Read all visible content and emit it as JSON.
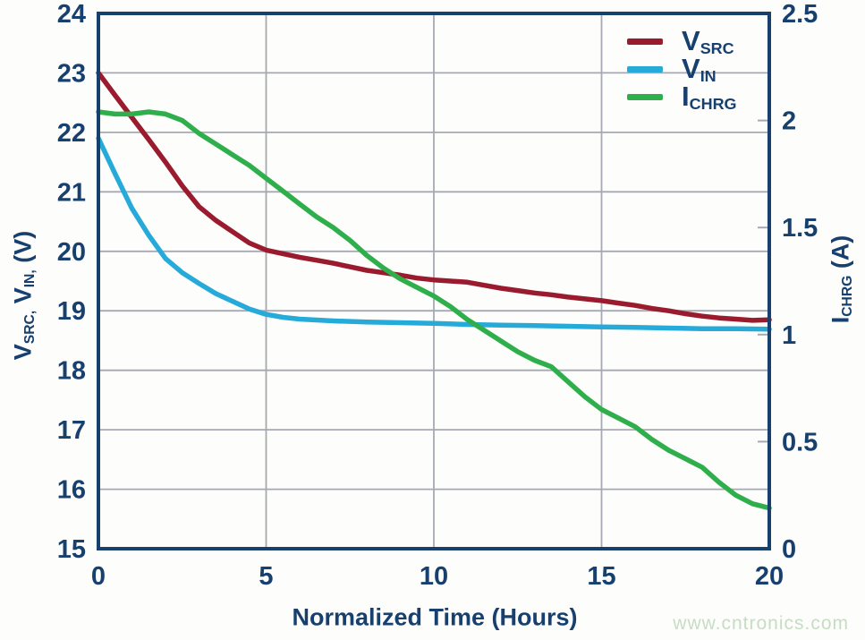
{
  "watermark": "www.cntronics.com",
  "colors": {
    "navy_axis": "#17406F",
    "grid": "#A6A9B4",
    "background": "#FDFDFB",
    "series_vsrc": "#9A1B2E",
    "series_vin": "#25AAD9",
    "series_ichrg": "#2FAF4B",
    "watermark_green": "#C7DCC4"
  },
  "axes": {
    "left_title": {
      "p1": "V",
      "s1": "SRC,",
      "p2": " V",
      "s2": "IN,",
      "p3": " (V)"
    },
    "right_title": {
      "p1": "I",
      "s1": "CHRG",
      "p2": " (A)"
    }
  },
  "chart_data": {
    "type": "line",
    "title": "",
    "xlabel": "Normalized Time (Hours)",
    "ylabel_left": "VSRC, VIN, (V)",
    "ylabel_right": "ICHRG (A)",
    "x_range": [
      0,
      20
    ],
    "x_ticks": [
      0,
      5,
      10,
      15,
      20
    ],
    "y_left_range": [
      15,
      24
    ],
    "y_left_ticks": [
      15,
      16,
      17,
      18,
      19,
      20,
      21,
      22,
      23,
      24
    ],
    "y_right_range": [
      0,
      2.5
    ],
    "y_right_ticks": [
      0,
      0.5,
      1,
      1.5,
      2,
      2.5
    ],
    "grid": {
      "vertical_at_x": [
        5,
        10,
        15
      ],
      "horizontal_at_left_y": [
        16,
        17,
        18,
        19,
        20,
        21,
        22,
        23
      ]
    },
    "legend_position": "top-right-inside",
    "series": [
      {
        "name": "VSRC",
        "label_main": "V",
        "label_sub": "SRC",
        "axis": "left",
        "color": "#9A1B2E",
        "points": [
          [
            0,
            23.0
          ],
          [
            0.5,
            22.62
          ],
          [
            1,
            22.25
          ],
          [
            1.5,
            21.88
          ],
          [
            2,
            21.5
          ],
          [
            2.5,
            21.1
          ],
          [
            3,
            20.75
          ],
          [
            3.5,
            20.52
          ],
          [
            4,
            20.33
          ],
          [
            4.5,
            20.14
          ],
          [
            5,
            20.02
          ],
          [
            5.5,
            19.96
          ],
          [
            6,
            19.9
          ],
          [
            6.5,
            19.85
          ],
          [
            7,
            19.8
          ],
          [
            7.5,
            19.74
          ],
          [
            8,
            19.68
          ],
          [
            8.5,
            19.64
          ],
          [
            9,
            19.6
          ],
          [
            9.5,
            19.55
          ],
          [
            10,
            19.52
          ],
          [
            10.5,
            19.5
          ],
          [
            11,
            19.48
          ],
          [
            11.5,
            19.43
          ],
          [
            12,
            19.38
          ],
          [
            12.5,
            19.34
          ],
          [
            13,
            19.3
          ],
          [
            13.5,
            19.27
          ],
          [
            14,
            19.23
          ],
          [
            14.5,
            19.2
          ],
          [
            15,
            19.17
          ],
          [
            15.5,
            19.13
          ],
          [
            16,
            19.09
          ],
          [
            16.5,
            19.04
          ],
          [
            17,
            19.0
          ],
          [
            17.5,
            18.95
          ],
          [
            18,
            18.91
          ],
          [
            18.5,
            18.88
          ],
          [
            19,
            18.86
          ],
          [
            19.5,
            18.84
          ],
          [
            20,
            18.85
          ]
        ]
      },
      {
        "name": "VIN",
        "label_main": "V",
        "label_sub": "IN",
        "axis": "left",
        "color": "#25AAD9",
        "points": [
          [
            0,
            21.9
          ],
          [
            0.5,
            21.3
          ],
          [
            1,
            20.72
          ],
          [
            1.5,
            20.27
          ],
          [
            2,
            19.88
          ],
          [
            2.5,
            19.64
          ],
          [
            3,
            19.46
          ],
          [
            3.5,
            19.29
          ],
          [
            4,
            19.16
          ],
          [
            4.5,
            19.03
          ],
          [
            5,
            18.94
          ],
          [
            5.5,
            18.89
          ],
          [
            6,
            18.86
          ],
          [
            7,
            18.83
          ],
          [
            8,
            18.81
          ],
          [
            9,
            18.8
          ],
          [
            10,
            18.79
          ],
          [
            11,
            18.77
          ],
          [
            12,
            18.76
          ],
          [
            13,
            18.75
          ],
          [
            14,
            18.74
          ],
          [
            15,
            18.73
          ],
          [
            16,
            18.72
          ],
          [
            17,
            18.71
          ],
          [
            18,
            18.7
          ],
          [
            19,
            18.7
          ],
          [
            20,
            18.69
          ]
        ]
      },
      {
        "name": "ICHRG",
        "label_main": "I",
        "label_sub": "CHRG",
        "axis": "right",
        "color": "#2FAF4B",
        "points": [
          [
            0,
            2.04
          ],
          [
            0.5,
            2.03
          ],
          [
            1,
            2.03
          ],
          [
            1.5,
            2.04
          ],
          [
            2,
            2.03
          ],
          [
            2.5,
            2.0
          ],
          [
            3,
            1.94
          ],
          [
            3.5,
            1.89
          ],
          [
            4,
            1.84
          ],
          [
            4.5,
            1.79
          ],
          [
            5,
            1.73
          ],
          [
            5.5,
            1.67
          ],
          [
            6,
            1.61
          ],
          [
            6.5,
            1.55
          ],
          [
            7,
            1.5
          ],
          [
            7.5,
            1.44
          ],
          [
            8,
            1.37
          ],
          [
            8.5,
            1.31
          ],
          [
            9,
            1.26
          ],
          [
            9.5,
            1.22
          ],
          [
            10,
            1.18
          ],
          [
            10.5,
            1.13
          ],
          [
            11,
            1.07
          ],
          [
            11.5,
            1.02
          ],
          [
            12,
            0.97
          ],
          [
            12.5,
            0.92
          ],
          [
            13,
            0.88
          ],
          [
            13.5,
            0.85
          ],
          [
            14,
            0.78
          ],
          [
            14.5,
            0.71
          ],
          [
            15,
            0.65
          ],
          [
            15.5,
            0.61
          ],
          [
            16,
            0.57
          ],
          [
            16.5,
            0.51
          ],
          [
            17,
            0.46
          ],
          [
            17.5,
            0.42
          ],
          [
            18,
            0.38
          ],
          [
            18.5,
            0.31
          ],
          [
            19,
            0.25
          ],
          [
            19.5,
            0.21
          ],
          [
            20,
            0.19
          ]
        ]
      }
    ]
  }
}
